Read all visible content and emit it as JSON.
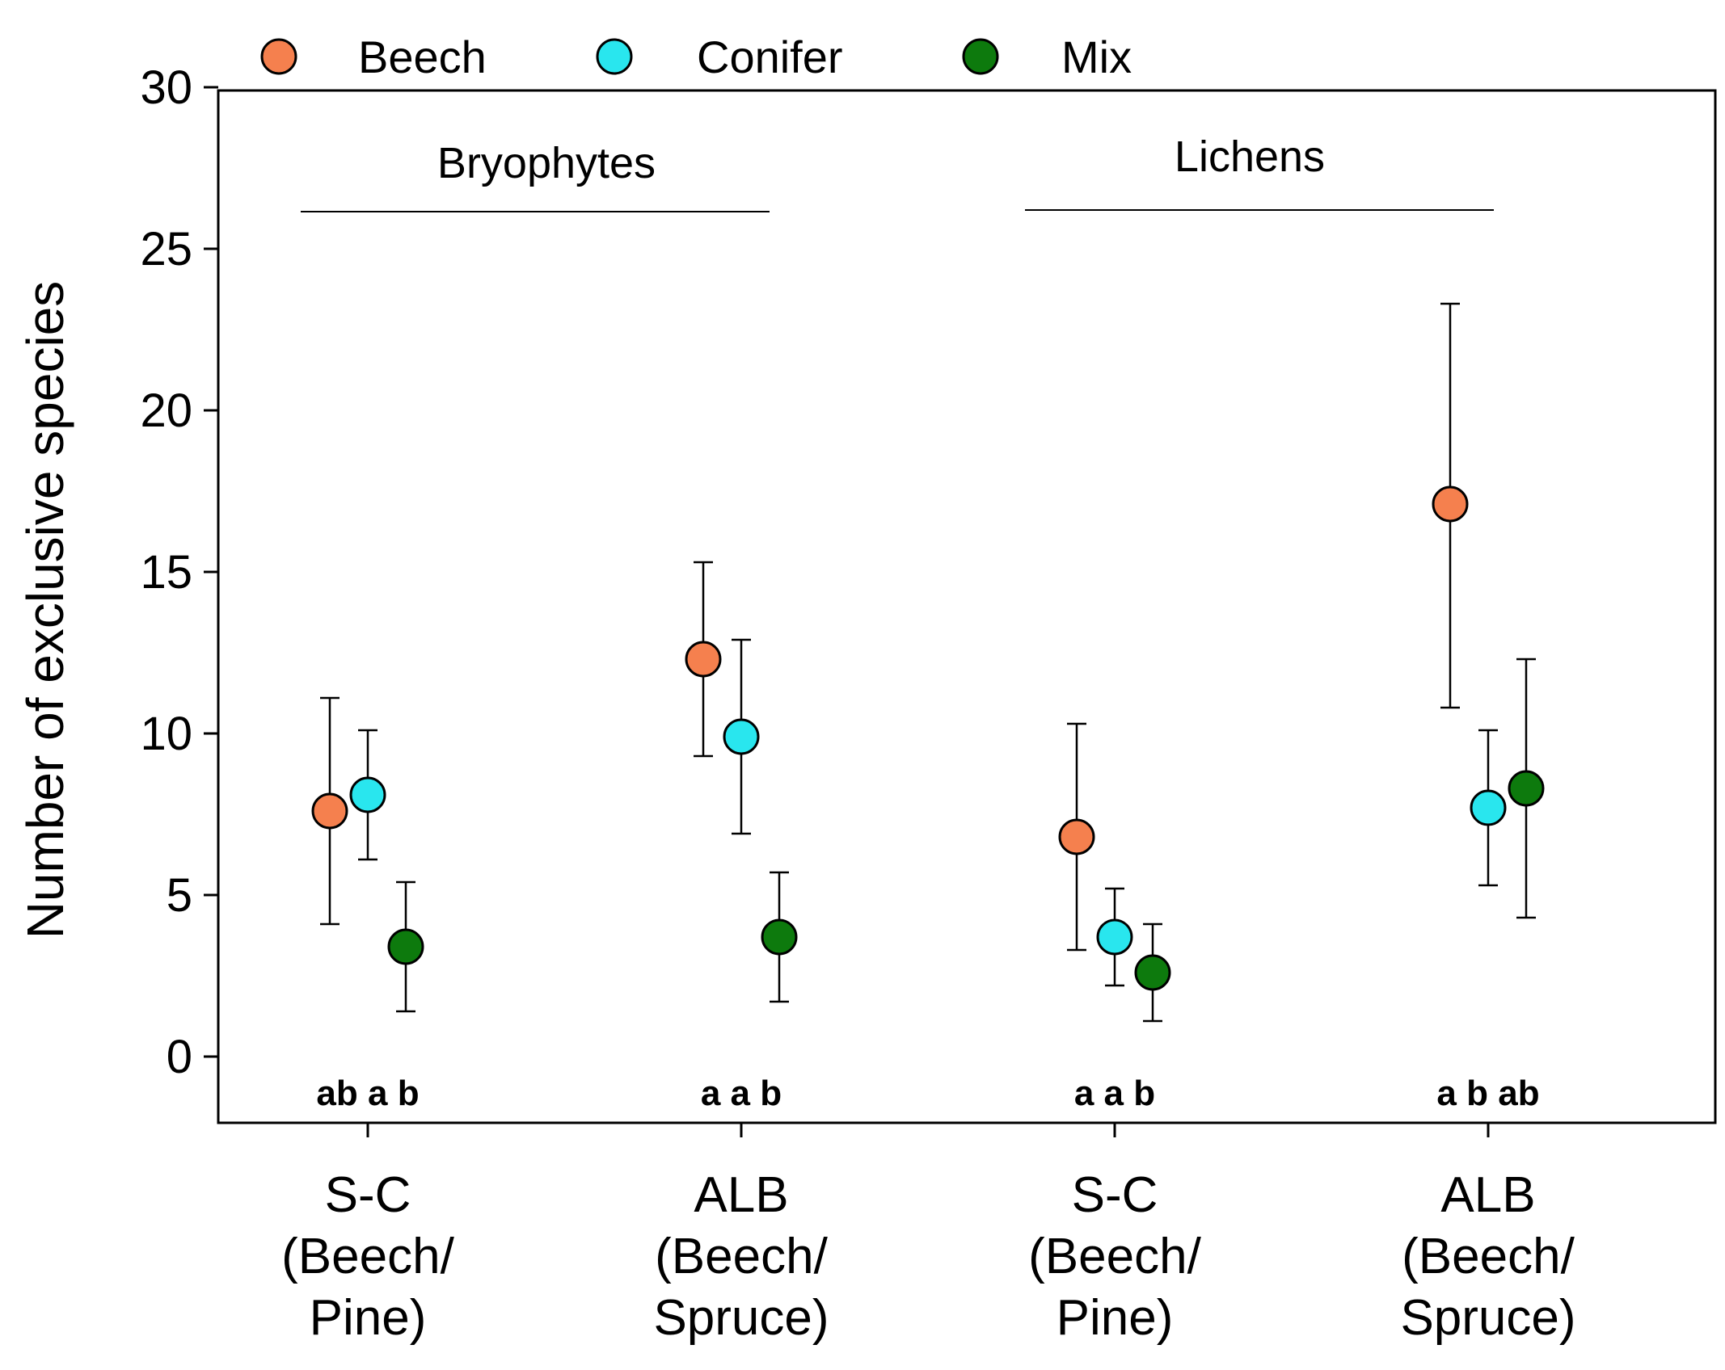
{
  "chart_data": {
    "type": "scatter",
    "title": "",
    "xlabel": "",
    "ylabel": "Number of exclusive species",
    "ylim": [
      -2,
      30
    ],
    "yticks": [
      0,
      5,
      10,
      15,
      20,
      25,
      30
    ],
    "grid": false,
    "legend_position": "top",
    "categories": [
      [
        "S-C",
        "(Beech/",
        "Pine)"
      ],
      [
        "ALB",
        "(Beech/",
        "Spruce)"
      ],
      [
        "S-C",
        "(Beech/",
        "Pine)"
      ],
      [
        "ALB",
        "(Beech/",
        "Spruce)"
      ]
    ],
    "series": [
      {
        "name": "Beech",
        "color": "#f5804e",
        "values": [
          7.6,
          12.3,
          6.8,
          17.1
        ],
        "lower": [
          4.1,
          9.3,
          3.3,
          10.8
        ],
        "upper": [
          11.1,
          15.3,
          10.3,
          23.3
        ]
      },
      {
        "name": "Conifer",
        "color": "#29e6ee",
        "values": [
          8.1,
          9.9,
          3.7,
          7.7
        ],
        "lower": [
          6.1,
          6.9,
          2.2,
          5.3
        ],
        "upper": [
          10.1,
          12.9,
          5.2,
          10.1
        ]
      },
      {
        "name": "Mix",
        "color": "#0d7a0d",
        "values": [
          3.4,
          3.7,
          2.6,
          8.3
        ],
        "lower": [
          1.4,
          1.7,
          1.1,
          4.3
        ],
        "upper": [
          5.4,
          5.7,
          4.1,
          12.3
        ]
      }
    ],
    "group_labels": [
      "Bryophytes",
      "Lichens"
    ],
    "significance_labels": [
      "ab a b",
      "a a b",
      "a a b",
      "a b ab"
    ]
  }
}
